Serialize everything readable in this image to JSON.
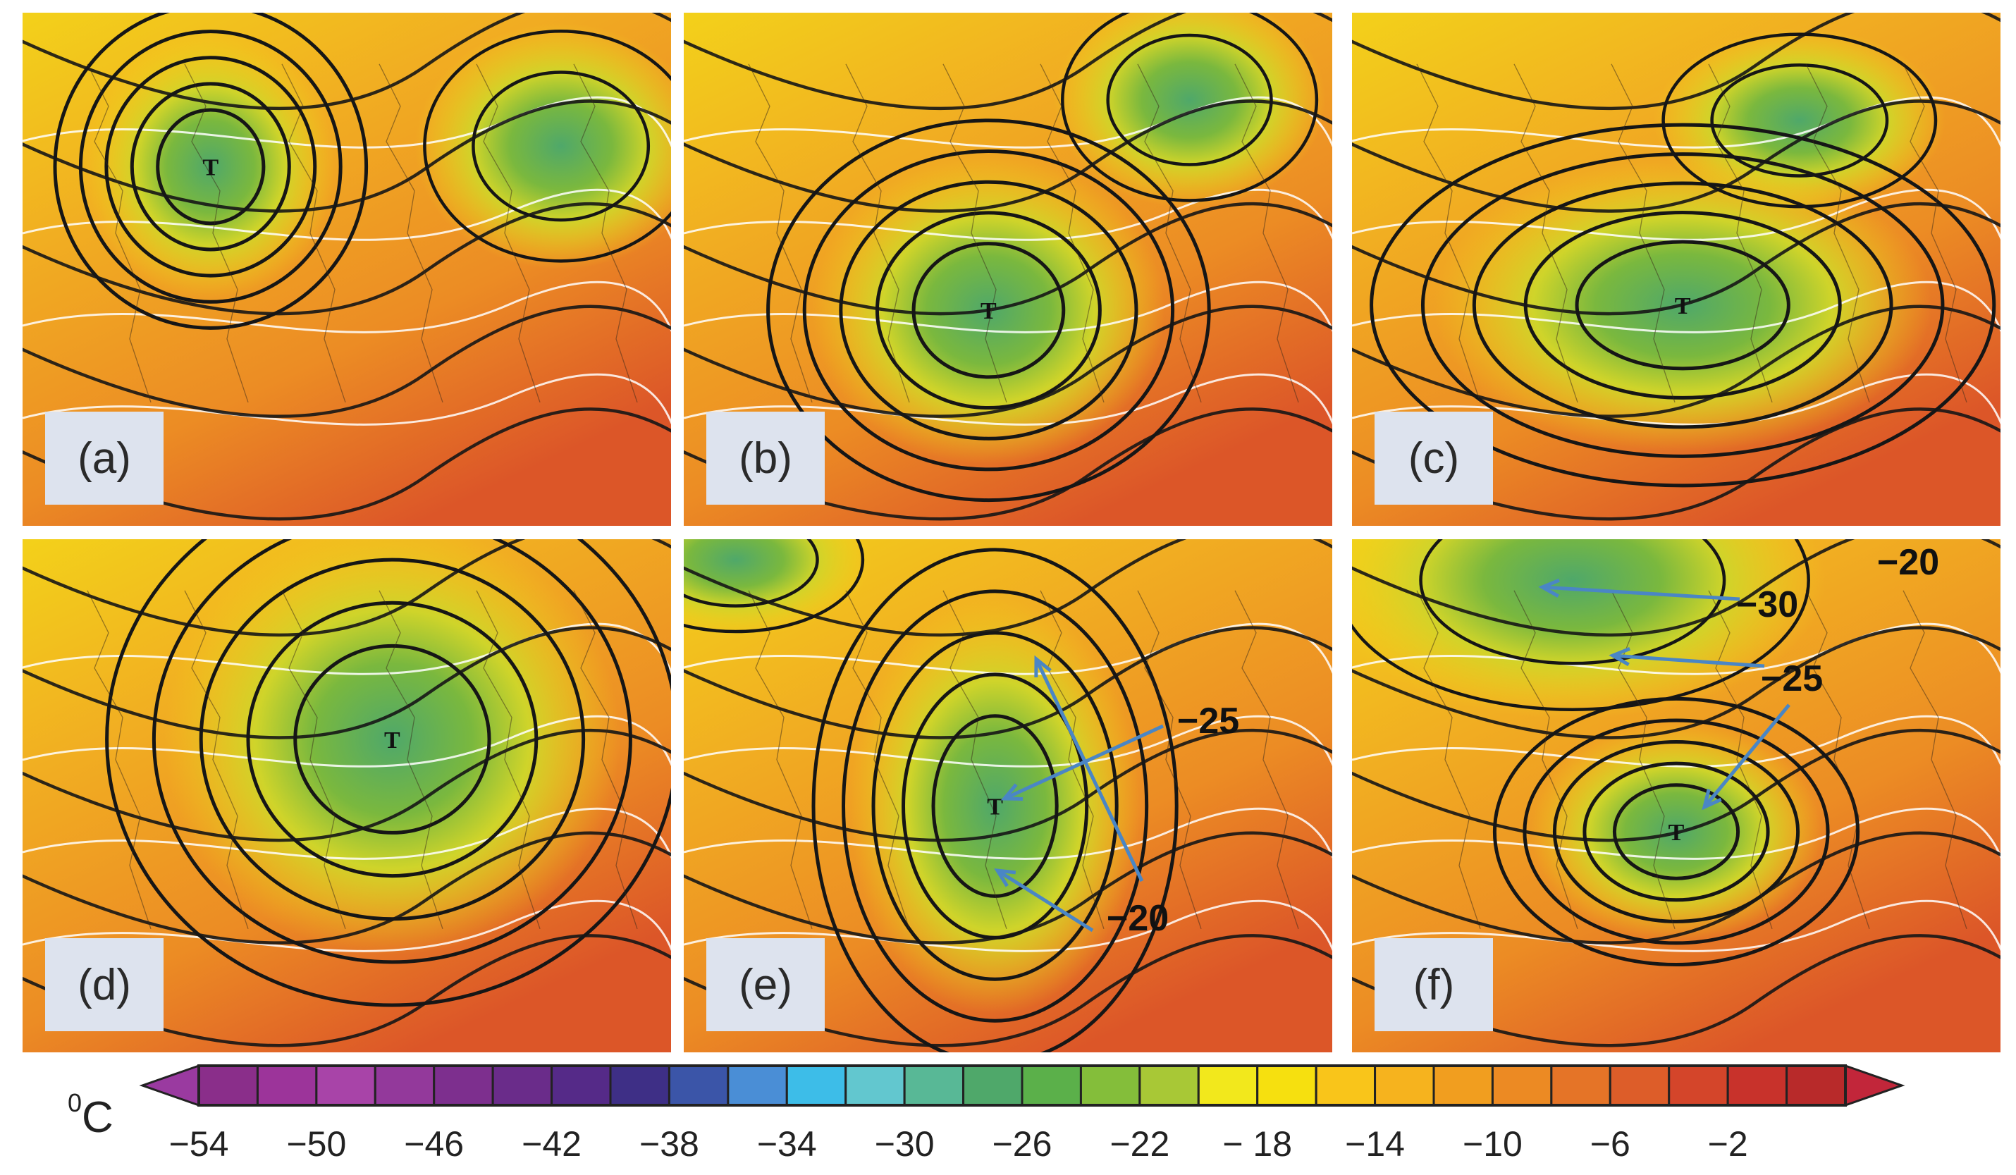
{
  "panels": [
    {
      "label": "(a)",
      "annotations": []
    },
    {
      "label": "(b)",
      "annotations": []
    },
    {
      "label": "(c)",
      "annotations": []
    },
    {
      "label": "(d)",
      "annotations": []
    },
    {
      "label": "(e)",
      "annotations": [
        "−25",
        "−20"
      ]
    },
    {
      "label": "(f)",
      "annotations": [
        "−20",
        "−30",
        "−25"
      ]
    }
  ],
  "colorbar": {
    "unit": "C",
    "unit_sup": "0",
    "tick_labels": [
      "−54",
      "−50",
      "−46",
      "−42",
      "−38",
      "−34",
      "−30",
      "−26",
      "−22",
      "− 18",
      "−14",
      "−10",
      "−6",
      "−2"
    ],
    "colors": [
      "#8a2e8a",
      "#9c349a",
      "#a844a8",
      "#93399b",
      "#7d2f8e",
      "#6a2c8a",
      "#552a88",
      "#3e2f86",
      "#3b55a8",
      "#4a8ed6",
      "#3dbde8",
      "#62c7cf",
      "#58b896",
      "#4fa86a",
      "#5bb04a",
      "#84be3a",
      "#a8c836",
      "#f2e81c",
      "#f6e00f",
      "#f9c51a",
      "#f6b31e",
      "#f19e1f",
      "#ec8a23",
      "#e57427",
      "#dd5d29",
      "#d4452a",
      "#c8322b",
      "#b82a2a"
    ],
    "arrow_left_color": "#9a3aa0",
    "arrow_right_color": "#c2263a"
  }
}
